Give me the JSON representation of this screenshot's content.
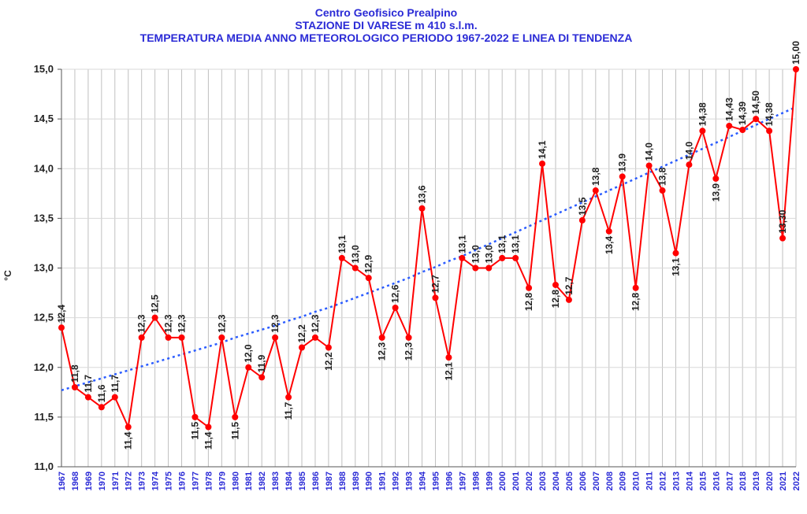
{
  "header": {
    "line1": "Centro Geofisico Prealpino",
    "line2": "STAZIONE DI VARESE m 410 s.l.m.",
    "line3": "TEMPERATURA MEDIA ANNO METEOROLOGICO  PERIODO 1967-2022 E LINEA DI TENDENZA"
  },
  "colors": {
    "title": "#2b2bd6",
    "series": "#ff0000",
    "trend": "#2b5cff",
    "grid": "#c0c0c0",
    "xtick": "#2b2bd6"
  },
  "chart_data": {
    "type": "line",
    "title": "TEMPERATURA MEDIA ANNO METEOROLOGICO  PERIODO 1967-2022 E LINEA DI TENDENZA",
    "xlabel": "",
    "ylabel": "°C",
    "ylim": [
      11.0,
      15.0
    ],
    "yticks": [
      "11,0",
      "11,5",
      "12,0",
      "12,5",
      "13,0",
      "13,5",
      "14,0",
      "14,5",
      "15,0"
    ],
    "grid": true,
    "categories": [
      "1967",
      "1968",
      "1969",
      "1970",
      "1971",
      "1972",
      "1973",
      "1974",
      "1975",
      "1976",
      "1977",
      "1978",
      "1979",
      "1980",
      "1981",
      "1982",
      "1983",
      "1984",
      "1985",
      "1986",
      "1987",
      "1988",
      "1989",
      "1990",
      "1991",
      "1992",
      "1993",
      "1994",
      "1995",
      "1996",
      "1997",
      "1998",
      "1999",
      "2000",
      "2001",
      "2002",
      "2003",
      "2004",
      "2005",
      "2006",
      "2007",
      "2008",
      "2009",
      "2010",
      "2011",
      "2012",
      "2013",
      "2014",
      "2015",
      "2016",
      "2017",
      "2018",
      "2019",
      "2020",
      "2021",
      "2022"
    ],
    "series": [
      {
        "values": [
          12.4,
          11.8,
          11.7,
          11.6,
          11.7,
          11.4,
          12.3,
          12.5,
          12.3,
          12.3,
          11.5,
          11.4,
          12.3,
          11.5,
          12.0,
          11.9,
          12.3,
          11.7,
          12.2,
          12.3,
          12.2,
          13.1,
          13.0,
          12.9,
          12.3,
          12.6,
          12.3,
          13.6,
          12.7,
          12.1,
          13.1,
          13.0,
          13.0,
          13.1,
          13.1,
          12.8,
          14.05,
          12.83,
          12.68,
          13.48,
          13.78,
          13.37,
          13.92,
          12.8,
          14.03,
          13.78,
          13.15,
          14.04,
          14.38,
          13.9,
          14.43,
          14.39,
          14.5,
          14.38,
          13.3,
          15.0
        ],
        "labels": [
          "12,4",
          "11,8",
          "11,7",
          "11,6",
          "11,7",
          "11,4",
          "12,3",
          "12,5",
          "12,3",
          "12,3",
          "11,5",
          "11,4",
          "12,3",
          "11,5",
          "12,0",
          "11,9",
          "12,3",
          "11,7",
          "12,2",
          "12,3",
          "12,2",
          "13,1",
          "13,0",
          "12,9",
          "12,3",
          "12,6",
          "12,3",
          "13,6",
          "12,7",
          "12,1",
          "13,1",
          "13,0",
          "13,0",
          "13,1",
          "13,1",
          "12,8",
          "14,1",
          "12,8",
          "12,7",
          "13,5",
          "13,8",
          "13,4",
          "13,9",
          "12,8",
          "14,0",
          "13,8",
          "13,1",
          "14,0",
          "14,38",
          "13,9",
          "14,43",
          "14,39",
          "14,50",
          "14,38",
          "13,30",
          "15,00"
        ],
        "label_pos": [
          "up",
          "up",
          "up",
          "up",
          "up",
          "down",
          "up",
          "up",
          "up",
          "up",
          "down",
          "down",
          "up",
          "down",
          "up",
          "up",
          "up",
          "down",
          "up",
          "up",
          "down",
          "up",
          "up",
          "up",
          "down",
          "up",
          "down",
          "up",
          "up",
          "down",
          "up",
          "up",
          "up",
          "up",
          "up",
          "down",
          "up",
          "down",
          "up",
          "up",
          "up",
          "down",
          "up",
          "down",
          "up",
          "up",
          "down",
          "up",
          "up",
          "down",
          "up",
          "up",
          "up",
          "up",
          "up",
          "up"
        ]
      },
      {
        "type": "trend",
        "values": [
          11.77,
          11.81,
          11.85,
          11.89,
          11.93,
          11.97,
          12.01,
          12.05,
          12.09,
          12.13,
          12.17,
          12.21,
          12.25,
          12.3,
          12.34,
          12.38,
          12.42,
          12.47,
          12.51,
          12.56,
          12.6,
          12.65,
          12.7,
          12.75,
          12.8,
          12.85,
          12.9,
          12.96,
          13.01,
          13.07,
          13.12,
          13.18,
          13.24,
          13.3,
          13.36,
          13.42,
          13.48,
          13.54,
          13.6,
          13.66,
          13.72,
          13.78,
          13.84,
          13.9,
          13.96,
          14.02,
          14.08,
          14.14,
          14.2,
          14.26,
          14.32,
          14.38,
          14.44,
          14.5,
          14.56,
          14.62
        ]
      }
    ]
  }
}
